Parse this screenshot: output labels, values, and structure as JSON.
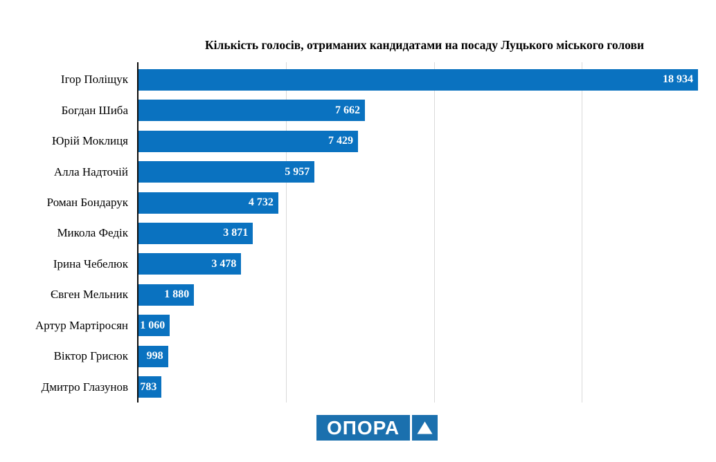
{
  "chart": {
    "title": "Кількість голосів, отриманих кандидатами на посаду Луцького міського голови"
  },
  "chart_data": {
    "type": "bar",
    "orientation": "horizontal",
    "title": "Кількість голосів, отриманих кандидатами на посаду Луцького міського голови",
    "categories": [
      "Ігор Поліщук",
      "Богдан Шиба",
      "Юрій Моклиця",
      "Алла Надточій",
      "Роман Бондарук",
      "Микола Федік",
      "Ірина Чебелюк",
      "Євген Мельник",
      "Артур Мартіросян",
      "Віктор Грисюк",
      "Дмитро Глазунов"
    ],
    "values": [
      18934,
      7662,
      7429,
      5957,
      4732,
      3871,
      3478,
      1880,
      1060,
      998,
      783
    ],
    "value_labels": [
      "18 934",
      "7 662",
      "7 429",
      "5 957",
      "4 732",
      "3 871",
      "3 478",
      "1 880",
      "1 060",
      "998",
      "783"
    ],
    "xlabel": "",
    "ylabel": "",
    "xlim": [
      0,
      18934
    ],
    "gridline_values": [
      5000,
      10000,
      15000
    ],
    "grid": true,
    "legend": false,
    "bar_color": "#0a72c0",
    "grid_color": "#d9d9d9",
    "value_label_color": "#ffffff"
  },
  "logo": {
    "text": "ОПОРА",
    "triangle_icon": "triangle-up",
    "color": "#1b70ae"
  }
}
